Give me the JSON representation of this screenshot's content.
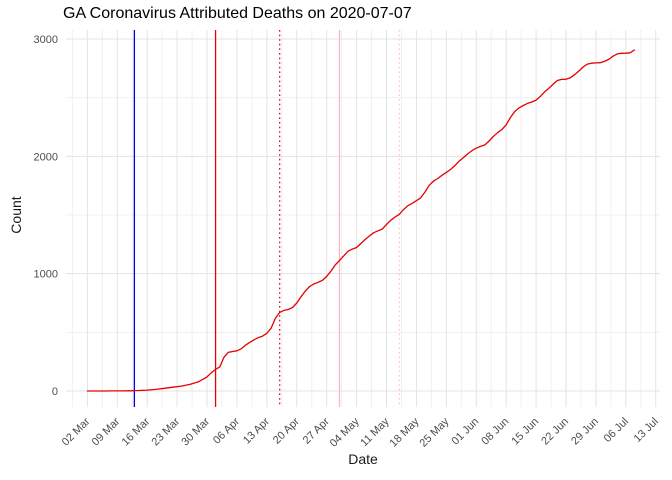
{
  "chart_data": {
    "type": "line",
    "title": "GA Coronavirus Attributed Deaths on 2020-07-07",
    "xlabel": "Date",
    "ylabel": "Count",
    "x_axis": {
      "range": [
        "2020-02-26",
        "2020-07-14"
      ],
      "tick_dates": [
        "2020-03-02",
        "2020-03-09",
        "2020-03-16",
        "2020-03-23",
        "2020-03-30",
        "2020-04-06",
        "2020-04-13",
        "2020-04-20",
        "2020-04-27",
        "2020-05-04",
        "2020-05-11",
        "2020-05-18",
        "2020-05-25",
        "2020-06-01",
        "2020-06-08",
        "2020-06-15",
        "2020-06-22",
        "2020-06-29",
        "2020-07-06",
        "2020-07-13"
      ],
      "tick_labels": [
        "02 Mar",
        "09 Mar",
        "16 Mar",
        "23 Mar",
        "30 Mar",
        "06 Apr",
        "13 Apr",
        "20 Apr",
        "27 Apr",
        "04 May",
        "11 May",
        "18 May",
        "25 May",
        "01 Jun",
        "08 Jun",
        "15 Jun",
        "22 Jun",
        "29 Jun",
        "06 Jul",
        "13 Jul"
      ],
      "tick_label_angle_deg": -45,
      "minor_grid_offset_days": -3.5
    },
    "y_axis": {
      "range": [
        0,
        3000
      ],
      "ticks": [
        0,
        1000,
        2000,
        3000
      ],
      "tick_labels": [
        "0",
        "1000",
        "2000",
        "3000"
      ],
      "minor_ticks": [
        500,
        1500,
        2500
      ]
    },
    "grid": {
      "show": true,
      "major_color": "#e3e3e3",
      "minor_color": "#f0f0f0",
      "background": "#ffffff"
    },
    "legend": "none",
    "vlines": [
      {
        "name": "blue-solid-event-line",
        "date": "2020-03-13",
        "color": "#0000e6",
        "style": "solid"
      },
      {
        "name": "red-solid-event-line",
        "date": "2020-04-01",
        "color": "#e60000",
        "style": "solid"
      },
      {
        "name": "red-dotted-event-line",
        "date": "2020-04-16",
        "color": "#d6102a",
        "style": "dotted"
      },
      {
        "name": "pink-solid-event-line",
        "date": "2020-04-30",
        "color": "#ffb3c0",
        "style": "solid"
      },
      {
        "name": "pink-dotted-event-line",
        "date": "2020-05-14",
        "color": "#ffc4cf",
        "style": "dotted"
      }
    ],
    "series": [
      {
        "name": "cumulative-attributed-deaths",
        "color": "#e60000",
        "width": 1.3,
        "points": [
          [
            "2020-03-02",
            0
          ],
          [
            "2020-03-04",
            0
          ],
          [
            "2020-03-06",
            0
          ],
          [
            "2020-03-08",
            1
          ],
          [
            "2020-03-10",
            1
          ],
          [
            "2020-03-12",
            2
          ],
          [
            "2020-03-13",
            3
          ],
          [
            "2020-03-14",
            4
          ],
          [
            "2020-03-16",
            8
          ],
          [
            "2020-03-18",
            14
          ],
          [
            "2020-03-20",
            23
          ],
          [
            "2020-03-22",
            32
          ],
          [
            "2020-03-24",
            42
          ],
          [
            "2020-03-26",
            56
          ],
          [
            "2020-03-28",
            78
          ],
          [
            "2020-03-30",
            120
          ],
          [
            "2020-03-31",
            155
          ],
          [
            "2020-04-01",
            185
          ],
          [
            "2020-04-02",
            205
          ],
          [
            "2020-04-03",
            290
          ],
          [
            "2020-04-04",
            330
          ],
          [
            "2020-04-05",
            337
          ],
          [
            "2020-04-06",
            343
          ],
          [
            "2020-04-07",
            360
          ],
          [
            "2020-04-08",
            390
          ],
          [
            "2020-04-09",
            415
          ],
          [
            "2020-04-10",
            436
          ],
          [
            "2020-04-11",
            455
          ],
          [
            "2020-04-12",
            468
          ],
          [
            "2020-04-13",
            492
          ],
          [
            "2020-04-14",
            535
          ],
          [
            "2020-04-15",
            620
          ],
          [
            "2020-04-16",
            670
          ],
          [
            "2020-04-17",
            687
          ],
          [
            "2020-04-18",
            695
          ],
          [
            "2020-04-19",
            712
          ],
          [
            "2020-04-20",
            750
          ],
          [
            "2020-04-21",
            803
          ],
          [
            "2020-04-22",
            851
          ],
          [
            "2020-04-23",
            891
          ],
          [
            "2020-04-24",
            913
          ],
          [
            "2020-04-25",
            926
          ],
          [
            "2020-04-26",
            943
          ],
          [
            "2020-04-27",
            977
          ],
          [
            "2020-04-28",
            1021
          ],
          [
            "2020-04-29",
            1074
          ],
          [
            "2020-04-30",
            1113
          ],
          [
            "2020-05-01",
            1152
          ],
          [
            "2020-05-02",
            1191
          ],
          [
            "2020-05-03",
            1209
          ],
          [
            "2020-05-04",
            1223
          ],
          [
            "2020-05-05",
            1257
          ],
          [
            "2020-05-06",
            1291
          ],
          [
            "2020-05-07",
            1321
          ],
          [
            "2020-05-08",
            1349
          ],
          [
            "2020-05-09",
            1365
          ],
          [
            "2020-05-10",
            1380
          ],
          [
            "2020-05-11",
            1419
          ],
          [
            "2020-05-12",
            1456
          ],
          [
            "2020-05-13",
            1483
          ],
          [
            "2020-05-14",
            1506
          ],
          [
            "2020-05-15",
            1547
          ],
          [
            "2020-05-16",
            1579
          ],
          [
            "2020-05-17",
            1599
          ],
          [
            "2020-05-18",
            1622
          ],
          [
            "2020-05-19",
            1647
          ],
          [
            "2020-05-20",
            1696
          ],
          [
            "2020-05-21",
            1753
          ],
          [
            "2020-05-22",
            1789
          ],
          [
            "2020-05-23",
            1811
          ],
          [
            "2020-05-24",
            1839
          ],
          [
            "2020-05-25",
            1863
          ],
          [
            "2020-05-26",
            1889
          ],
          [
            "2020-05-27",
            1921
          ],
          [
            "2020-05-28",
            1959
          ],
          [
            "2020-05-29",
            1989
          ],
          [
            "2020-05-30",
            2021
          ],
          [
            "2020-05-31",
            2049
          ],
          [
            "2020-06-01",
            2069
          ],
          [
            "2020-06-02",
            2085
          ],
          [
            "2020-06-03",
            2097
          ],
          [
            "2020-06-04",
            2131
          ],
          [
            "2020-06-05",
            2169
          ],
          [
            "2020-06-06",
            2201
          ],
          [
            "2020-06-07",
            2229
          ],
          [
            "2020-06-08",
            2269
          ],
          [
            "2020-06-09",
            2331
          ],
          [
            "2020-06-10",
            2381
          ],
          [
            "2020-06-11",
            2413
          ],
          [
            "2020-06-12",
            2433
          ],
          [
            "2020-06-13",
            2451
          ],
          [
            "2020-06-14",
            2463
          ],
          [
            "2020-06-15",
            2479
          ],
          [
            "2020-06-16",
            2511
          ],
          [
            "2020-06-17",
            2549
          ],
          [
            "2020-06-18",
            2581
          ],
          [
            "2020-06-19",
            2616
          ],
          [
            "2020-06-20",
            2646
          ],
          [
            "2020-06-21",
            2656
          ],
          [
            "2020-06-22",
            2657
          ],
          [
            "2020-06-23",
            2669
          ],
          [
            "2020-06-24",
            2696
          ],
          [
            "2020-06-25",
            2726
          ],
          [
            "2020-06-26",
            2761
          ],
          [
            "2020-06-27",
            2786
          ],
          [
            "2020-06-28",
            2794
          ],
          [
            "2020-06-29",
            2796
          ],
          [
            "2020-06-30",
            2798
          ],
          [
            "2020-07-01",
            2809
          ],
          [
            "2020-07-02",
            2826
          ],
          [
            "2020-07-03",
            2853
          ],
          [
            "2020-07-04",
            2873
          ],
          [
            "2020-07-05",
            2878
          ],
          [
            "2020-07-06",
            2879
          ],
          [
            "2020-07-07",
            2882
          ],
          [
            "2020-07-08",
            2906
          ]
        ]
      }
    ],
    "text_colors": {
      "title": "#000000",
      "axis_text": "#4d4d4d",
      "axis_title": "#1a1a1a"
    }
  }
}
